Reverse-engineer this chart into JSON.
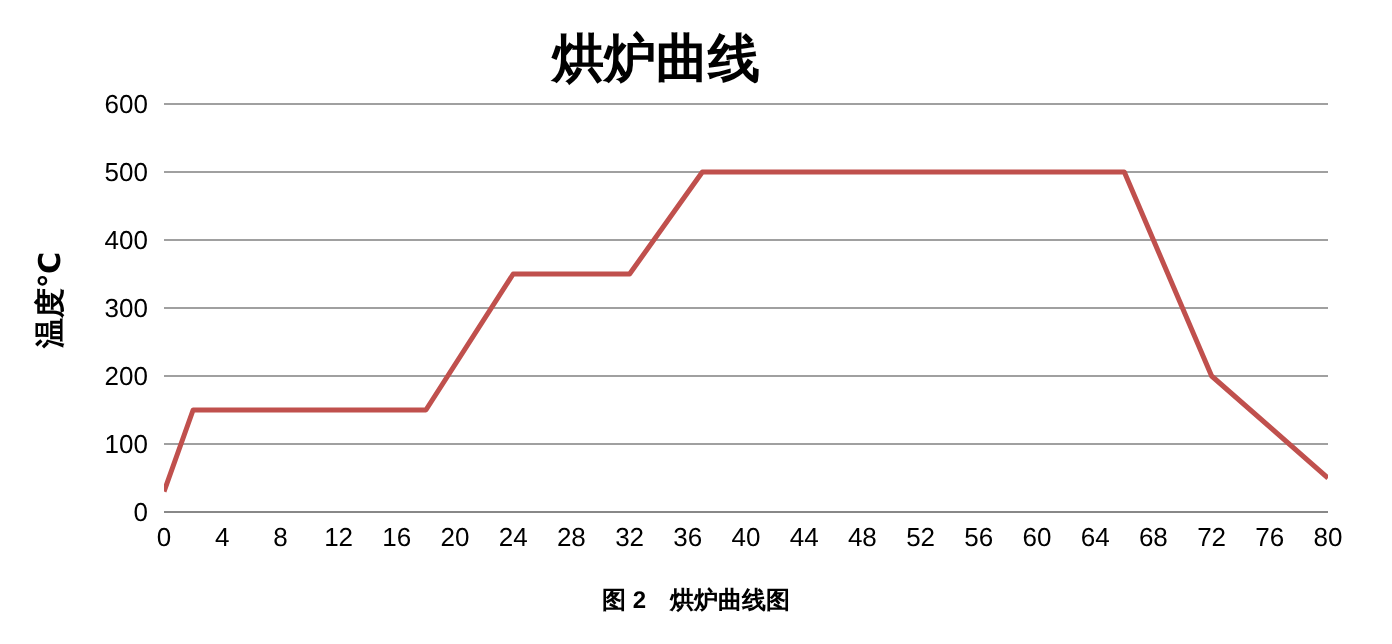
{
  "chart_data": {
    "type": "line",
    "title": "烘炉曲线",
    "ylabel": "温度℃",
    "annotations": [
      "图 2　烘炉曲线图"
    ],
    "x": [
      0,
      2,
      18,
      24,
      32,
      37,
      66,
      72,
      80
    ],
    "series": [
      {
        "color": "#c0504d",
        "values": [
          30,
          150,
          150,
          350,
          350,
          500,
          500,
          200,
          50
        ]
      }
    ],
    "xlim": [
      0,
      80
    ],
    "xticks": [
      0,
      4,
      8,
      12,
      16,
      20,
      24,
      28,
      32,
      36,
      40,
      44,
      48,
      52,
      56,
      60,
      64,
      68,
      72,
      76,
      80
    ],
    "ylim": [
      0,
      600
    ],
    "yticks": [
      0,
      100,
      200,
      300,
      400,
      500,
      600
    ],
    "grid": "y",
    "legend": false,
    "marker": "none",
    "line_style": "solid"
  }
}
